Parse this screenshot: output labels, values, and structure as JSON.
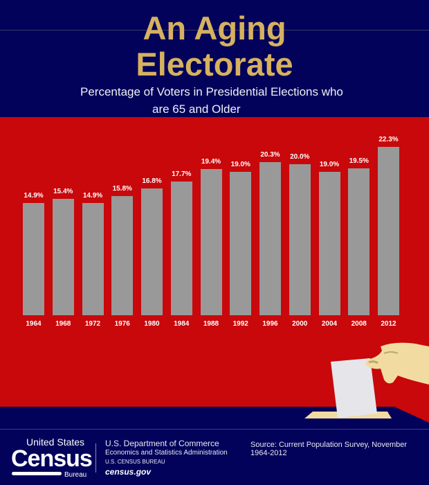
{
  "header": {
    "title_line1": "An Aging",
    "title_line2": "Electorate",
    "subtitle_line1": "Percentage of Voters in Presidential Elections who",
    "subtitle_line2": "are 65 and Older"
  },
  "colors": {
    "navy": "#02025a",
    "red": "#c8080b",
    "gold": "#d6b15f",
    "bar": "#999999"
  },
  "chart_data": {
    "type": "bar",
    "title": "Percentage of Voters in Presidential Elections who are 65 and Older",
    "categories": [
      "1964",
      "1968",
      "1972",
      "1976",
      "1980",
      "1984",
      "1988",
      "1992",
      "1996",
      "2000",
      "2004",
      "2008",
      "2012"
    ],
    "values": [
      14.9,
      15.4,
      14.9,
      15.8,
      16.8,
      17.7,
      19.4,
      19.0,
      20.3,
      20.0,
      19.0,
      19.5,
      22.3
    ],
    "data_labels": [
      "14.9%",
      "15.4%",
      "14.9%",
      "15.8%",
      "16.8%",
      "17.7%",
      "19.4%",
      "19.0%",
      "20.3%",
      "20.0%",
      "19.0%",
      "19.5%",
      "22.3%"
    ],
    "xlabel": "",
    "ylabel": "",
    "ylim": [
      0,
      22.3
    ],
    "grid": false
  },
  "illustration": {
    "icon": "hand-casting-ballot-icon"
  },
  "footer": {
    "logo_top": "United States",
    "logo_main": "Census",
    "logo_bottom": "Bureau",
    "dept": "U.S. Department of Commerce",
    "admin": "Economics and Statistics Administration",
    "bureau": "U.S. CENSUS BUREAU",
    "site": "census.gov",
    "source": "Source: Current Population Survey, November 1964-2012"
  }
}
